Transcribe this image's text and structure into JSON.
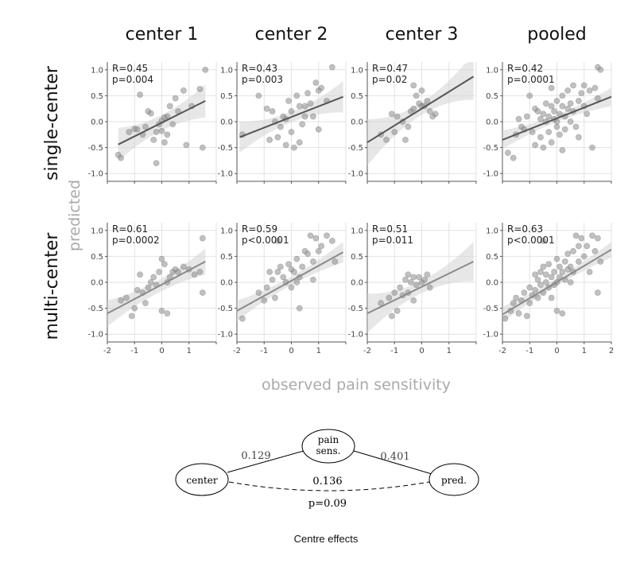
{
  "chart_data": {
    "type": "scatter",
    "columns": [
      "center 1",
      "center 2",
      "center 3",
      "pooled"
    ],
    "rows": [
      "single-center",
      "multi-center"
    ],
    "ylabel": "predicted",
    "xlabel": "observed pain sensitivity",
    "xlim": [
      -2,
      2
    ],
    "ylim": [
      -1.15,
      1.15
    ],
    "xticks": [
      "-2",
      "-1",
      "0",
      "1",
      "2"
    ],
    "yticks": [
      "-1.0",
      "-0.5",
      "0.0",
      "0.5",
      "1.0"
    ],
    "grid": true,
    "panels": [
      {
        "row": "single-center",
        "col": "center 1",
        "stat_r": "R=0.45",
        "stat_p": "p=0.004",
        "fit_x": [
          -1.6,
          1.6
        ],
        "fit_y": [
          -0.44,
          0.4
        ],
        "band": [
          0.15,
          0.32
        ],
        "points": [
          [
            -1.6,
            -0.64
          ],
          [
            -1.5,
            -0.7
          ],
          [
            -1.2,
            -0.2
          ],
          [
            -1.0,
            -0.14
          ],
          [
            -0.9,
            -0.15
          ],
          [
            -0.8,
            0.52
          ],
          [
            -0.6,
            -0.1
          ],
          [
            -0.5,
            0.2
          ],
          [
            -0.4,
            0.16
          ],
          [
            -0.3,
            -0.35
          ],
          [
            -0.2,
            -0.2
          ],
          [
            -0.1,
            -0.05
          ],
          [
            0.0,
            0.02
          ],
          [
            0.0,
            -0.18
          ],
          [
            0.1,
            0.08
          ],
          [
            0.2,
            0.1
          ],
          [
            0.2,
            -0.25
          ],
          [
            0.3,
            0.3
          ],
          [
            -0.2,
            -0.8
          ],
          [
            0.5,
            0.45
          ],
          [
            0.6,
            0.2
          ],
          [
            0.8,
            0.6
          ],
          [
            0.9,
            -0.45
          ],
          [
            1.1,
            0.3
          ],
          [
            1.4,
            0.63
          ],
          [
            1.5,
            -0.5
          ],
          [
            1.6,
            1.0
          ],
          [
            0.4,
            -0.05
          ],
          [
            -0.7,
            -0.25
          ],
          [
            0.1,
            -0.4
          ]
        ]
      },
      {
        "row": "single-center",
        "col": "center 2",
        "stat_r": "R=0.43",
        "stat_p": "p=0.003",
        "fit_x": [
          -1.9,
          1.9
        ],
        "fit_y": [
          -0.3,
          0.48
        ],
        "band": [
          0.1,
          0.3
        ],
        "points": [
          [
            -1.8,
            -0.25
          ],
          [
            -1.2,
            0.5
          ],
          [
            -0.9,
            0.25
          ],
          [
            -0.7,
            0.2
          ],
          [
            -0.6,
            0.0
          ],
          [
            -0.5,
            -0.3
          ],
          [
            -0.4,
            -0.1
          ],
          [
            -0.3,
            0.1
          ],
          [
            -0.2,
            0.05
          ],
          [
            -0.1,
            0.4
          ],
          [
            0.0,
            -0.2
          ],
          [
            0.0,
            0.2
          ],
          [
            0.1,
            -0.5
          ],
          [
            0.2,
            0.5
          ],
          [
            0.3,
            0.3
          ],
          [
            0.4,
            -0.05
          ],
          [
            0.5,
            0.1
          ],
          [
            0.6,
            0.55
          ],
          [
            0.7,
            0.35
          ],
          [
            0.8,
            0.1
          ],
          [
            0.9,
            0.75
          ],
          [
            1.0,
            0.6
          ],
          [
            1.1,
            0.65
          ],
          [
            1.3,
            0.4
          ],
          [
            1.5,
            1.05
          ],
          [
            -0.2,
            -0.45
          ],
          [
            0.3,
            -0.4
          ],
          [
            -0.8,
            -0.35
          ],
          [
            1.0,
            -0.15
          ],
          [
            0.5,
            0.3
          ]
        ]
      },
      {
        "row": "single-center",
        "col": "center 3",
        "stat_r": "R=0.47",
        "stat_p": "p=0.02",
        "fit_x": [
          -2.0,
          1.9
        ],
        "fit_y": [
          -0.4,
          0.87
        ],
        "band": [
          0.12,
          0.45
        ],
        "points": [
          [
            -1.5,
            -0.25
          ],
          [
            -1.3,
            -0.35
          ],
          [
            -1.0,
            -0.2
          ],
          [
            -0.9,
            0.1
          ],
          [
            -0.7,
            0.0
          ],
          [
            -0.5,
            -0.1
          ],
          [
            -0.4,
            0.2
          ],
          [
            -0.3,
            0.25
          ],
          [
            -0.2,
            0.5
          ],
          [
            -0.1,
            0.35
          ],
          [
            0.0,
            0.3
          ],
          [
            0.0,
            0.6
          ],
          [
            0.1,
            0.3
          ],
          [
            0.2,
            0.4
          ],
          [
            0.3,
            0.2
          ],
          [
            -0.6,
            -0.35
          ],
          [
            -0.3,
            0.7
          ],
          [
            0.5,
            0.15
          ],
          [
            0.4,
            0.1
          ],
          [
            -1.1,
            0.15
          ]
        ]
      },
      {
        "row": "single-center",
        "col": "pooled",
        "stat_r": "R=0.42",
        "stat_p": "p=0.0001",
        "fit_x": [
          -2.0,
          2.0
        ],
        "fit_y": [
          -0.35,
          0.48
        ],
        "band": [
          0.07,
          0.18
        ],
        "points": [
          [
            -1.8,
            -0.6
          ],
          [
            -1.6,
            -0.7
          ],
          [
            -1.5,
            -0.25
          ],
          [
            -1.3,
            -0.1
          ],
          [
            -1.2,
            -0.15
          ],
          [
            -1.1,
            0.1
          ],
          [
            -1.0,
            0.5
          ],
          [
            -0.9,
            -0.2
          ],
          [
            -0.8,
            0.25
          ],
          [
            -0.7,
            0.2
          ],
          [
            -0.6,
            -0.3
          ],
          [
            -0.6,
            0.05
          ],
          [
            -0.5,
            0.15
          ],
          [
            -0.5,
            -0.5
          ],
          [
            -0.4,
            0.0
          ],
          [
            -0.4,
            0.35
          ],
          [
            -0.3,
            -0.2
          ],
          [
            -0.3,
            0.1
          ],
          [
            -0.2,
            0.3
          ],
          [
            -0.2,
            -0.4
          ],
          [
            -0.1,
            0.05
          ],
          [
            -0.1,
            0.2
          ],
          [
            0.0,
            0.0
          ],
          [
            0.0,
            -0.1
          ],
          [
            0.0,
            0.4
          ],
          [
            0.1,
            0.15
          ],
          [
            0.1,
            -0.25
          ],
          [
            0.2,
            0.3
          ],
          [
            0.2,
            0.5
          ],
          [
            0.3,
            0.1
          ],
          [
            0.3,
            -0.15
          ],
          [
            0.4,
            0.25
          ],
          [
            0.4,
            0.6
          ],
          [
            0.5,
            0.0
          ],
          [
            0.5,
            0.35
          ],
          [
            0.6,
            0.2
          ],
          [
            0.6,
            0.7
          ],
          [
            0.7,
            -0.1
          ],
          [
            0.8,
            0.4
          ],
          [
            0.9,
            0.55
          ],
          [
            1.0,
            0.3
          ],
          [
            1.0,
            0.7
          ],
          [
            1.2,
            0.6
          ],
          [
            1.3,
            -0.5
          ],
          [
            1.4,
            0.65
          ],
          [
            1.5,
            1.05
          ],
          [
            1.6,
            1.0
          ],
          [
            1.1,
            0.15
          ],
          [
            -0.8,
            -0.45
          ],
          [
            0.8,
            -0.3
          ],
          [
            -0.2,
            0.65
          ],
          [
            0.2,
            -0.55
          ],
          [
            -1.4,
            0.05
          ],
          [
            1.5,
            0.45
          ]
        ]
      },
      {
        "row": "multi-center",
        "col": "center 1",
        "stat_r": "R=0.61",
        "stat_p": "p=0.0002",
        "fit_x": [
          -2.0,
          1.6
        ],
        "fit_y": [
          -0.6,
          0.4
        ],
        "band": [
          0.12,
          0.25
        ],
        "points": [
          [
            -1.5,
            -0.35
          ],
          [
            -1.3,
            -0.3
          ],
          [
            -1.1,
            -0.65
          ],
          [
            -1.0,
            -0.5
          ],
          [
            -0.9,
            -0.15
          ],
          [
            -0.8,
            0.15
          ],
          [
            -0.7,
            -0.2
          ],
          [
            -0.5,
            -0.1
          ],
          [
            -0.4,
            0.0
          ],
          [
            -0.3,
            0.1
          ],
          [
            -0.2,
            -0.05
          ],
          [
            -0.1,
            0.2
          ],
          [
            0.0,
            0.45
          ],
          [
            0.0,
            -0.55
          ],
          [
            0.1,
            0.35
          ],
          [
            0.2,
            0.0
          ],
          [
            0.2,
            -0.6
          ],
          [
            0.3,
            0.1
          ],
          [
            0.5,
            0.25
          ],
          [
            0.6,
            0.2
          ],
          [
            0.8,
            0.3
          ],
          [
            1.0,
            0.25
          ],
          [
            1.2,
            0.15
          ],
          [
            1.4,
            0.2
          ],
          [
            1.5,
            0.85
          ],
          [
            1.5,
            -0.2
          ],
          [
            -0.6,
            -0.4
          ],
          [
            0.4,
            0.2
          ]
        ]
      },
      {
        "row": "multi-center",
        "col": "center 2",
        "stat_r": "R=0.59",
        "stat_p": "p<0.0001",
        "fit_x": [
          -2.0,
          1.9
        ],
        "fit_y": [
          -0.55,
          0.58
        ],
        "band": [
          0.08,
          0.2
        ],
        "points": [
          [
            -1.8,
            -0.7
          ],
          [
            -1.2,
            -0.2
          ],
          [
            -1.0,
            -0.35
          ],
          [
            -0.9,
            -0.1
          ],
          [
            -0.7,
            0.05
          ],
          [
            -0.6,
            -0.3
          ],
          [
            -0.5,
            0.2
          ],
          [
            -0.4,
            0.3
          ],
          [
            -0.3,
            0.1
          ],
          [
            -0.2,
            0.0
          ],
          [
            -0.1,
            0.35
          ],
          [
            0.0,
            -0.1
          ],
          [
            0.0,
            0.25
          ],
          [
            0.1,
            0.2
          ],
          [
            0.2,
            0.45
          ],
          [
            0.3,
            0.1
          ],
          [
            0.4,
            0.3
          ],
          [
            0.5,
            0.6
          ],
          [
            0.6,
            0.55
          ],
          [
            0.7,
            0.9
          ],
          [
            0.8,
            0.4
          ],
          [
            0.9,
            0.85
          ],
          [
            1.0,
            0.6
          ],
          [
            1.1,
            0.7
          ],
          [
            1.3,
            0.9
          ],
          [
            1.5,
            0.8
          ],
          [
            1.6,
            0.4
          ],
          [
            -0.5,
            0.8
          ],
          [
            0.3,
            -0.5
          ],
          [
            0.8,
            0.05
          ],
          [
            -0.8,
            0.2
          ],
          [
            0.2,
            0.0
          ]
        ]
      },
      {
        "row": "multi-center",
        "col": "center 3",
        "stat_r": "R=0.51",
        "stat_p": "p=0.011",
        "fit_x": [
          -2.0,
          1.9
        ],
        "fit_y": [
          -0.6,
          0.4
        ],
        "band": [
          0.12,
          0.38
        ],
        "points": [
          [
            -1.5,
            -0.4
          ],
          [
            -1.2,
            -0.3
          ],
          [
            -1.0,
            -0.2
          ],
          [
            -0.9,
            -0.55
          ],
          [
            -0.8,
            -0.1
          ],
          [
            -0.7,
            -0.25
          ],
          [
            -0.6,
            0.05
          ],
          [
            -0.5,
            -0.2
          ],
          [
            -0.4,
            0.0
          ],
          [
            -0.3,
            0.1
          ],
          [
            -0.2,
            -0.05
          ],
          [
            -0.1,
            0.1
          ],
          [
            0.0,
            0.0
          ],
          [
            0.1,
            0.05
          ],
          [
            0.2,
            0.15
          ],
          [
            -1.1,
            -0.65
          ],
          [
            -0.3,
            -0.35
          ],
          [
            0.3,
            -0.1
          ],
          [
            -0.5,
            0.15
          ]
        ]
      },
      {
        "row": "multi-center",
        "col": "pooled",
        "stat_r": "R=0.63",
        "stat_p": "p<0.0001",
        "fit_x": [
          -2.0,
          2.0
        ],
        "fit_y": [
          -0.62,
          0.63
        ],
        "band": [
          0.07,
          0.15
        ],
        "points": [
          [
            -1.9,
            -0.7
          ],
          [
            -1.7,
            -0.55
          ],
          [
            -1.5,
            -0.3
          ],
          [
            -1.4,
            -0.6
          ],
          [
            -1.3,
            -0.35
          ],
          [
            -1.2,
            -0.2
          ],
          [
            -1.1,
            -0.65
          ],
          [
            -1.0,
            -0.4
          ],
          [
            -1.0,
            -0.1
          ],
          [
            -0.9,
            -0.25
          ],
          [
            -0.8,
            0.15
          ],
          [
            -0.8,
            -0.15
          ],
          [
            -0.7,
            -0.3
          ],
          [
            -0.7,
            0.05
          ],
          [
            -0.6,
            0.2
          ],
          [
            -0.6,
            -0.05
          ],
          [
            -0.5,
            -0.2
          ],
          [
            -0.5,
            0.3
          ],
          [
            -0.4,
            0.0
          ],
          [
            -0.4,
            0.15
          ],
          [
            -0.3,
            -0.1
          ],
          [
            -0.3,
            0.35
          ],
          [
            -0.2,
            0.1
          ],
          [
            -0.2,
            -0.3
          ],
          [
            -0.1,
            0.2
          ],
          [
            -0.1,
            -0.05
          ],
          [
            0.0,
            0.45
          ],
          [
            0.0,
            0.0
          ],
          [
            0.0,
            -0.55
          ],
          [
            0.1,
            0.3
          ],
          [
            0.1,
            0.1
          ],
          [
            0.2,
            0.2
          ],
          [
            0.2,
            -0.6
          ],
          [
            0.3,
            0.4
          ],
          [
            0.3,
            0.05
          ],
          [
            0.4,
            0.25
          ],
          [
            0.4,
            0.55
          ],
          [
            0.5,
            0.3
          ],
          [
            0.5,
            0.0
          ],
          [
            0.6,
            0.6
          ],
          [
            0.6,
            0.2
          ],
          [
            0.7,
            0.9
          ],
          [
            0.8,
            0.4
          ],
          [
            0.8,
            0.7
          ],
          [
            0.9,
            0.85
          ],
          [
            1.0,
            0.5
          ],
          [
            1.1,
            0.7
          ],
          [
            1.2,
            0.2
          ],
          [
            1.3,
            0.9
          ],
          [
            1.4,
            0.6
          ],
          [
            1.5,
            0.85
          ],
          [
            1.6,
            0.4
          ],
          [
            1.5,
            -0.2
          ],
          [
            -0.5,
            0.8
          ],
          [
            -1.6,
            -0.4
          ]
        ]
      }
    ]
  },
  "diagram": {
    "nodes": {
      "pain": {
        "line1": "pain",
        "line2": "sens."
      },
      "center": {
        "label": "center"
      },
      "pred": {
        "label": "pred."
      }
    },
    "edges": {
      "center_pain": "0.129",
      "pain_pred": "0.401",
      "center_pred": "0.136",
      "center_pred_p": "p=0.09"
    }
  },
  "caption": "Centre effects"
}
